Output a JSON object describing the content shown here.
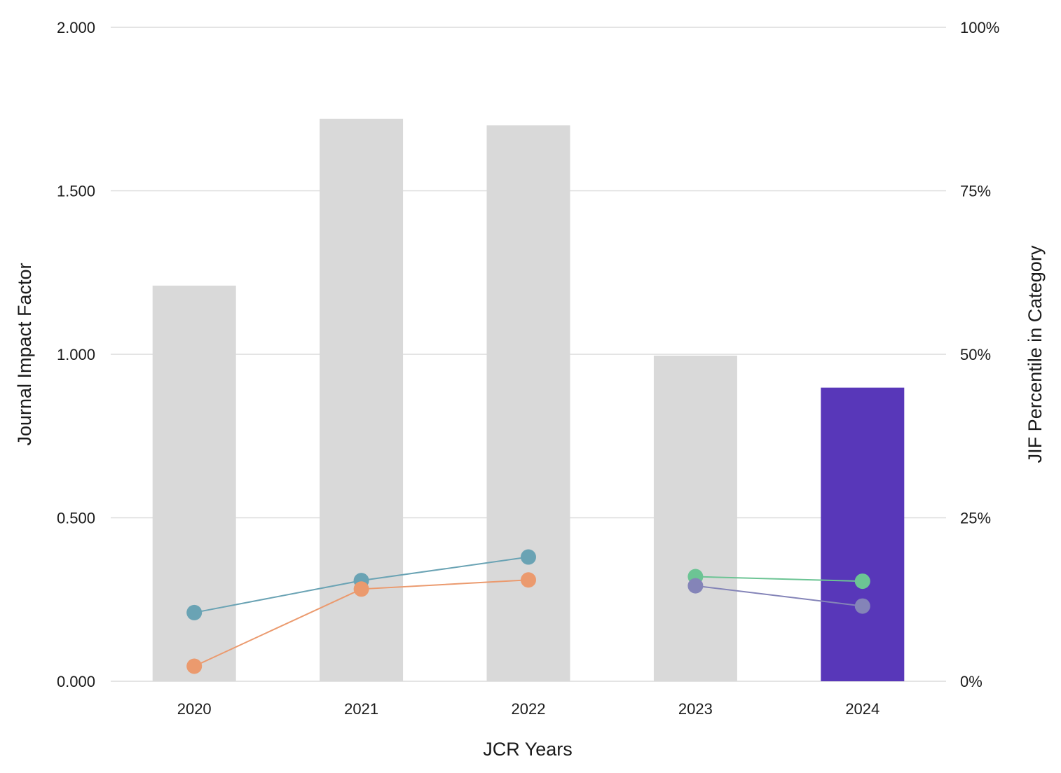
{
  "chart_data": {
    "type": "bar",
    "categories": [
      "2020",
      "2021",
      "2022",
      "2023",
      "2024"
    ],
    "bar_series": {
      "values": [
        1.21,
        1.72,
        1.7,
        0.996,
        0.898
      ],
      "colors": [
        "#d9d9d9",
        "#d9d9d9",
        "#d9d9d9",
        "#d9d9d9",
        "#5837b9"
      ]
    },
    "line_series": [
      {
        "color": "#6aa3b4",
        "points": [
          [
            0,
            10.5
          ],
          [
            1,
            15.4
          ],
          [
            2,
            19.0
          ]
        ]
      },
      {
        "color": "#eb9a6e",
        "points": [
          [
            0,
            2.3
          ],
          [
            1,
            14.1
          ],
          [
            2,
            15.5
          ]
        ]
      },
      {
        "color": "#6cc494",
        "points": [
          [
            3,
            16.0
          ],
          [
            4,
            15.3
          ]
        ]
      },
      {
        "color": "#8484b8",
        "points": [
          [
            3,
            14.6
          ],
          [
            4,
            11.5
          ]
        ]
      }
    ],
    "left_axis": {
      "label": "Journal Impact Factor",
      "ylim": [
        0,
        2
      ],
      "ticks": [
        0,
        0.5,
        1,
        1.5,
        2
      ],
      "tick_labels": [
        "0.000",
        "0.500",
        "1.000",
        "1.500",
        "2.000"
      ]
    },
    "right_axis": {
      "label": "JIF Percentile in Category",
      "ylim": [
        0,
        100
      ],
      "ticks": [
        0,
        25,
        50,
        75,
        100
      ],
      "tick_labels": [
        "0%",
        "25%",
        "50%",
        "75%",
        "100%"
      ]
    },
    "xlabel": "JCR Years",
    "grid": true
  }
}
